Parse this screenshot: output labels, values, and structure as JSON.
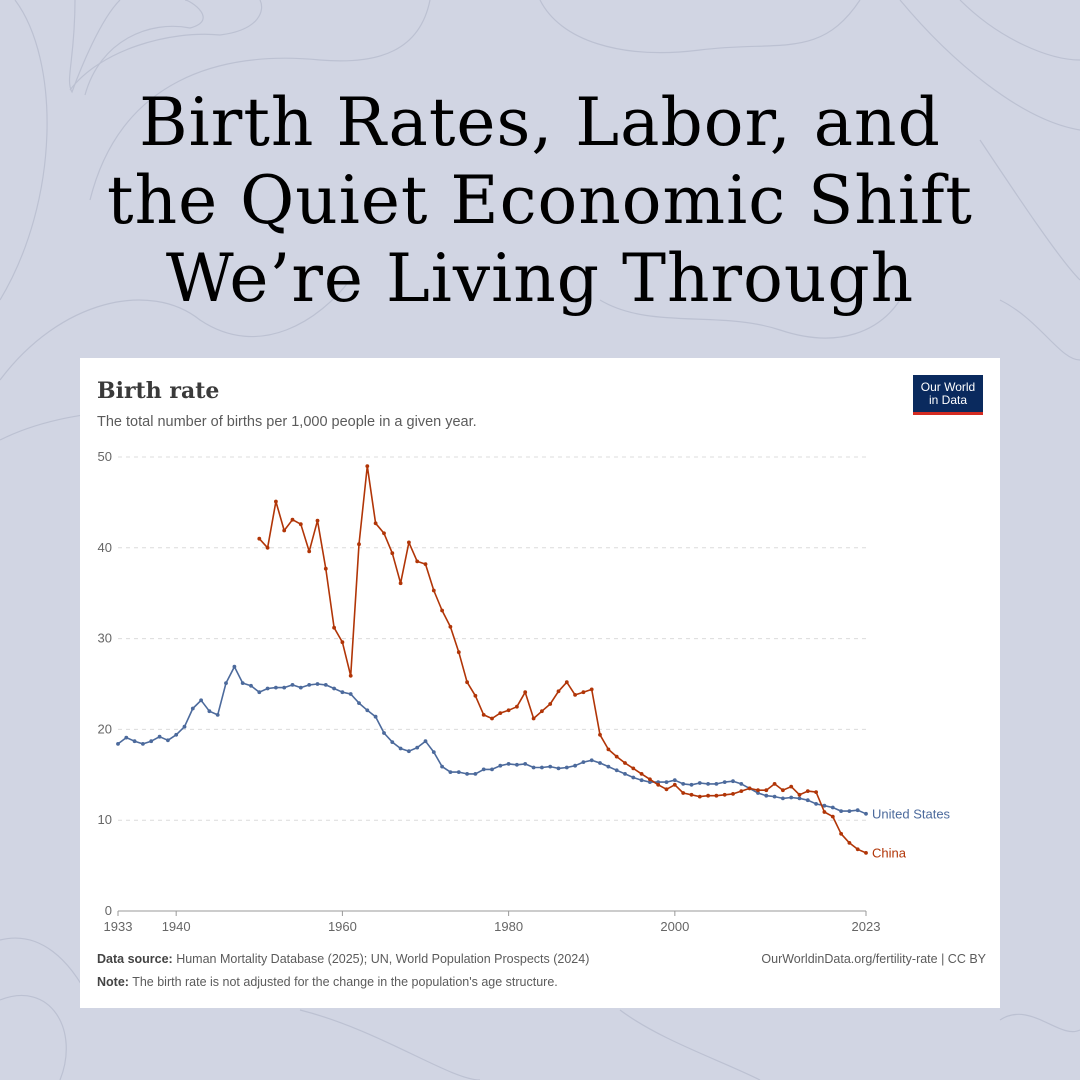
{
  "headline": {
    "lines": [
      "Birth Rates, Labor, and",
      "the Quiet Economic Shift",
      "We’re Living Through"
    ]
  },
  "card": {
    "title": "Birth rate",
    "subtitle": "The total number of births per 1,000 people in a given year.",
    "logo": {
      "line1": "Our World",
      "line2": "in Data"
    },
    "footer": {
      "source_label": "Data source:",
      "source_text": " Human Mortality Database (2025); UN, World Population Prospects (2024)",
      "note_label": "Note:",
      "note_text": " The birth rate is not adjusted for the change in the population's age structure.",
      "right_text": "OurWorldinData.org/fertility-rate | CC BY"
    }
  },
  "colors": {
    "background": "#d1d5e3",
    "us": "#4c6a9c",
    "china": "#b13507",
    "logo_bg": "#0a2a5e",
    "logo_accent": "#d42b21"
  },
  "chart_data": {
    "type": "line",
    "title": "Birth rate",
    "subtitle": "The total number of births per 1,000 people in a given year.",
    "xlabel": "",
    "ylabel": "",
    "xlim": [
      1933,
      2023
    ],
    "ylim": [
      0,
      50
    ],
    "x_ticks": [
      1933,
      1940,
      1960,
      1980,
      2000,
      2023
    ],
    "y_ticks": [
      0,
      10,
      20,
      30,
      40,
      50
    ],
    "grid": "horizontal dashed",
    "legend": "inline labels at line ends",
    "series": [
      {
        "name": "United States",
        "color": "#4c6a9c",
        "start_year": 1933,
        "values": [
          18.4,
          19.1,
          18.7,
          18.4,
          18.7,
          19.2,
          18.8,
          19.4,
          20.3,
          22.3,
          23.2,
          22.0,
          21.6,
          25.1,
          26.9,
          25.1,
          24.8,
          24.1,
          24.5,
          24.6,
          24.6,
          24.9,
          24.6,
          24.9,
          25.0,
          24.9,
          24.5,
          24.1,
          23.9,
          22.9,
          22.1,
          21.4,
          19.6,
          18.6,
          17.9,
          17.6,
          18.0,
          18.7,
          17.5,
          15.9,
          15.3,
          15.3,
          15.1,
          15.1,
          15.6,
          15.6,
          16.0,
          16.2,
          16.1,
          16.2,
          15.8,
          15.8,
          15.9,
          15.7,
          15.8,
          16.0,
          16.4,
          16.6,
          16.3,
          15.9,
          15.5,
          15.1,
          14.7,
          14.4,
          14.2,
          14.2,
          14.2,
          14.4,
          14.0,
          13.9,
          14.1,
          14.0,
          14.0,
          14.2,
          14.3,
          14.0,
          13.5,
          13.0,
          12.7,
          12.6,
          12.4,
          12.5,
          12.4,
          12.2,
          11.8,
          11.6,
          11.4,
          11.0,
          11.0,
          11.1,
          10.7
        ]
      },
      {
        "name": "China",
        "color": "#b13507",
        "start_year": 1950,
        "values": [
          41.0,
          40.0,
          45.1,
          41.9,
          43.1,
          42.6,
          39.6,
          43.0,
          37.7,
          31.2,
          29.6,
          25.9,
          40.4,
          49.0,
          42.7,
          41.6,
          39.4,
          36.1,
          40.6,
          38.5,
          38.2,
          35.3,
          33.1,
          31.3,
          28.5,
          25.2,
          23.7,
          21.6,
          21.2,
          21.8,
          22.1,
          22.5,
          24.1,
          21.2,
          22.0,
          22.8,
          24.2,
          25.2,
          23.8,
          24.1,
          24.4,
          19.4,
          17.8,
          17.0,
          16.3,
          15.7,
          15.1,
          14.5,
          13.9,
          13.4,
          13.9,
          13.0,
          12.8,
          12.6,
          12.7,
          12.7,
          12.8,
          12.9,
          13.2,
          13.5,
          13.3,
          13.3,
          14.0,
          13.3,
          13.7,
          12.8,
          13.2,
          13.1,
          10.9,
          10.4,
          8.5,
          7.5,
          6.8,
          6.4
        ]
      }
    ]
  }
}
